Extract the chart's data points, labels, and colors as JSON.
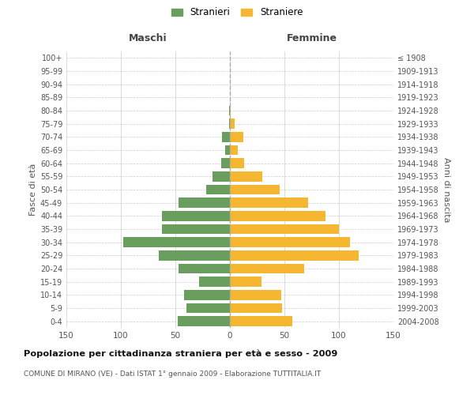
{
  "age_groups": [
    "0-4",
    "5-9",
    "10-14",
    "15-19",
    "20-24",
    "25-29",
    "30-34",
    "35-39",
    "40-44",
    "45-49",
    "50-54",
    "55-59",
    "60-64",
    "65-69",
    "70-74",
    "75-79",
    "80-84",
    "85-89",
    "90-94",
    "95-99",
    "100+"
  ],
  "birth_years": [
    "2004-2008",
    "1999-2003",
    "1994-1998",
    "1989-1993",
    "1984-1988",
    "1979-1983",
    "1974-1978",
    "1969-1973",
    "1964-1968",
    "1959-1963",
    "1954-1958",
    "1949-1953",
    "1944-1948",
    "1939-1943",
    "1934-1938",
    "1929-1933",
    "1924-1928",
    "1919-1923",
    "1914-1918",
    "1909-1913",
    "≤ 1908"
  ],
  "maschi": [
    48,
    40,
    42,
    28,
    47,
    65,
    98,
    62,
    62,
    47,
    22,
    16,
    8,
    4,
    7,
    1,
    1,
    0,
    0,
    0,
    0
  ],
  "femmine": [
    57,
    48,
    47,
    29,
    68,
    118,
    110,
    100,
    88,
    72,
    46,
    30,
    13,
    7,
    12,
    4,
    1,
    0,
    0,
    0,
    0
  ],
  "male_color": "#6a9e5e",
  "female_color": "#f5b731",
  "background_color": "#ffffff",
  "grid_color": "#cccccc",
  "title": "Popolazione per cittadinanza straniera per età e sesso - 2009",
  "subtitle": "COMUNE DI MIRANO (VE) - Dati ISTAT 1° gennaio 2009 - Elaborazione TUTTITALIA.IT",
  "xlabel_left": "Maschi",
  "xlabel_right": "Femmine",
  "ylabel_left": "Fasce di età",
  "ylabel_right": "Anni di nascita",
  "legend_male": "Stranieri",
  "legend_female": "Straniere",
  "xlim": 150
}
